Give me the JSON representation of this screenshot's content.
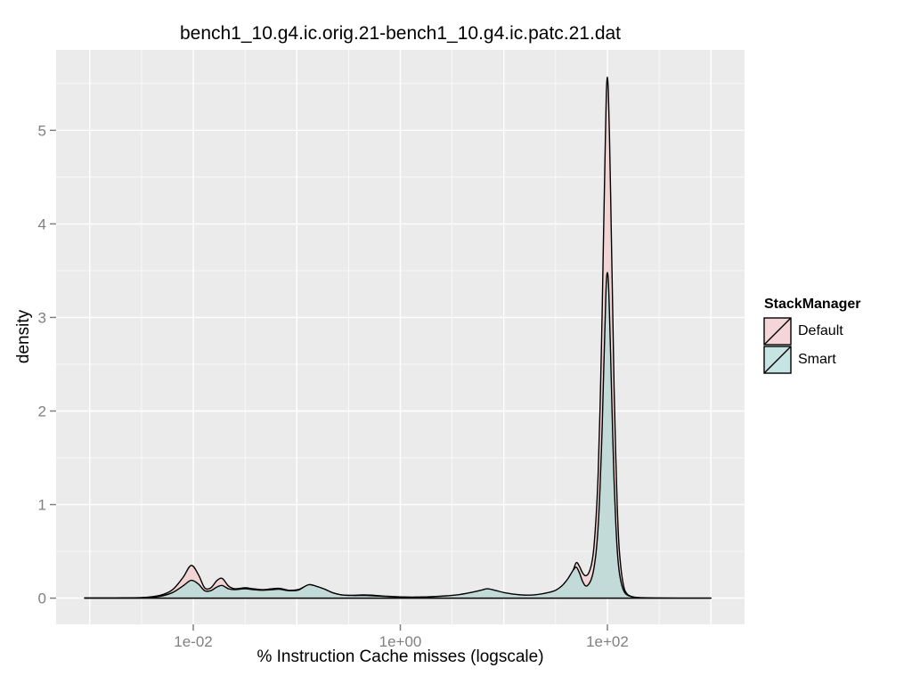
{
  "title": "bench1_10.g4.ic.orig.21-bench1_10.g4.ic.patc.21.dat",
  "chart_data": {
    "type": "area",
    "subtype": "density",
    "title": "bench1_10.g4.ic.orig.21-bench1_10.g4.ic.patc.21.dat",
    "xlabel": "% Instruction Cache misses (logscale)",
    "ylabel": "density",
    "x_scale": "log10",
    "grid": "on",
    "axes": {
      "x": {
        "range": [
          -3.325,
          3.325
        ],
        "ticks": [
          {
            "value": -2,
            "label": "1e-02"
          },
          {
            "value": 0,
            "label": "1e+00"
          },
          {
            "value": 2,
            "label": "1e+02"
          }
        ],
        "major": [
          -3,
          -2,
          -1,
          0,
          1,
          2,
          3
        ],
        "minor": [
          -2.5,
          -1.5,
          -0.5,
          0.5,
          1.5,
          2.5
        ]
      },
      "y": {
        "range": [
          -0.28,
          5.86
        ],
        "ticks": [
          {
            "value": 0,
            "label": "0"
          },
          {
            "value": 1,
            "label": "1"
          },
          {
            "value": 2,
            "label": "2"
          },
          {
            "value": 3,
            "label": "3"
          },
          {
            "value": 4,
            "label": "4"
          },
          {
            "value": 5,
            "label": "5"
          }
        ],
        "major": [
          0,
          1,
          2,
          3,
          4,
          5
        ],
        "minor": [
          0.5,
          1.5,
          2.5,
          3.5,
          4.5,
          5.5
        ]
      }
    },
    "legend": {
      "title": "StackManager",
      "position": "right",
      "items": [
        {
          "label": "Default",
          "fill": "#F4D6D8"
        },
        {
          "label": "Smart",
          "fill": "#C6E4E3"
        }
      ]
    },
    "style": {
      "panel_bg": "#EBEBEB",
      "grid": "#FFFFFF",
      "tick": "#7F7F7F",
      "tick_text": "#808080",
      "curve_stroke": "#000000",
      "key_stroke": "#000000"
    },
    "series": [
      {
        "name": "Default",
        "fill": "#F2D4D5",
        "points": [
          [
            -3.05,
            0.001
          ],
          [
            -2.75,
            0.002
          ],
          [
            -2.5,
            0.006
          ],
          [
            -2.32,
            0.03
          ],
          [
            -2.2,
            0.09
          ],
          [
            -2.1,
            0.22
          ],
          [
            -2.02,
            0.35
          ],
          [
            -1.95,
            0.25
          ],
          [
            -1.89,
            0.11
          ],
          [
            -1.83,
            0.11
          ],
          [
            -1.77,
            0.19
          ],
          [
            -1.72,
            0.21
          ],
          [
            -1.66,
            0.13
          ],
          [
            -1.6,
            0.1
          ],
          [
            -1.5,
            0.11
          ],
          [
            -1.42,
            0.1
          ],
          [
            -1.33,
            0.09
          ],
          [
            -1.24,
            0.1
          ],
          [
            -1.17,
            0.105
          ],
          [
            -1.08,
            0.085
          ],
          [
            -0.99,
            0.09
          ],
          [
            -0.93,
            0.12
          ],
          [
            -0.88,
            0.14
          ],
          [
            -0.82,
            0.125
          ],
          [
            -0.74,
            0.1
          ],
          [
            -0.66,
            0.06
          ],
          [
            -0.57,
            0.035
          ],
          [
            -0.46,
            0.03
          ],
          [
            -0.36,
            0.035
          ],
          [
            -0.25,
            0.03
          ],
          [
            -0.13,
            0.02
          ],
          [
            0,
            0.013
          ],
          [
            0.15,
            0.01
          ],
          [
            0.3,
            0.014
          ],
          [
            0.45,
            0.022
          ],
          [
            0.58,
            0.035
          ],
          [
            0.7,
            0.06
          ],
          [
            0.78,
            0.075
          ],
          [
            0.84,
            0.085
          ],
          [
            0.91,
            0.075
          ],
          [
            1,
            0.055
          ],
          [
            1.1,
            0.04
          ],
          [
            1.22,
            0.03
          ],
          [
            1.33,
            0.035
          ],
          [
            1.43,
            0.05
          ],
          [
            1.5,
            0.07
          ],
          [
            1.56,
            0.11
          ],
          [
            1.62,
            0.18
          ],
          [
            1.67,
            0.3
          ],
          [
            1.7,
            0.38
          ],
          [
            1.73,
            0.34
          ],
          [
            1.76,
            0.27
          ],
          [
            1.79,
            0.24
          ],
          [
            1.82,
            0.27
          ],
          [
            1.85,
            0.38
          ],
          [
            1.87,
            0.55
          ],
          [
            1.89,
            0.85
          ],
          [
            1.91,
            1.3
          ],
          [
            1.93,
            2.05
          ],
          [
            1.95,
            3.1
          ],
          [
            1.965,
            4
          ],
          [
            1.98,
            4.9
          ],
          [
            1.99,
            5.4
          ],
          [
            2,
            5.57
          ],
          [
            2.01,
            5.4
          ],
          [
            2.02,
            4.95
          ],
          [
            2.035,
            4.1
          ],
          [
            2.05,
            3.15
          ],
          [
            2.065,
            2.25
          ],
          [
            2.08,
            1.55
          ],
          [
            2.095,
            1
          ],
          [
            2.11,
            0.6
          ],
          [
            2.13,
            0.33
          ],
          [
            2.15,
            0.17
          ],
          [
            2.17,
            0.08
          ],
          [
            2.2,
            0.035
          ],
          [
            2.25,
            0.012
          ],
          [
            2.32,
            0.004
          ],
          [
            2.45,
            0.001
          ],
          [
            2.7,
            0
          ],
          [
            3,
            0
          ]
        ]
      },
      {
        "name": "Smart",
        "fill": "#C3DBD8",
        "points": [
          [
            -3.05,
            0.001
          ],
          [
            -2.75,
            0.002
          ],
          [
            -2.5,
            0.004
          ],
          [
            -2.32,
            0.02
          ],
          [
            -2.2,
            0.06
          ],
          [
            -2.1,
            0.13
          ],
          [
            -2.02,
            0.19
          ],
          [
            -1.95,
            0.15
          ],
          [
            -1.89,
            0.08
          ],
          [
            -1.83,
            0.08
          ],
          [
            -1.77,
            0.12
          ],
          [
            -1.72,
            0.135
          ],
          [
            -1.66,
            0.1
          ],
          [
            -1.6,
            0.09
          ],
          [
            -1.5,
            0.1
          ],
          [
            -1.42,
            0.09
          ],
          [
            -1.33,
            0.085
          ],
          [
            -1.24,
            0.09
          ],
          [
            -1.17,
            0.095
          ],
          [
            -1.08,
            0.08
          ],
          [
            -0.99,
            0.085
          ],
          [
            -0.93,
            0.12
          ],
          [
            -0.88,
            0.145
          ],
          [
            -0.82,
            0.13
          ],
          [
            -0.74,
            0.1
          ],
          [
            -0.66,
            0.06
          ],
          [
            -0.57,
            0.035
          ],
          [
            -0.46,
            0.028
          ],
          [
            -0.36,
            0.03
          ],
          [
            -0.25,
            0.025
          ],
          [
            -0.13,
            0.018
          ],
          [
            0,
            0.012
          ],
          [
            0.15,
            0.01
          ],
          [
            0.3,
            0.015
          ],
          [
            0.45,
            0.025
          ],
          [
            0.58,
            0.04
          ],
          [
            0.7,
            0.065
          ],
          [
            0.78,
            0.085
          ],
          [
            0.84,
            0.1
          ],
          [
            0.91,
            0.085
          ],
          [
            1,
            0.06
          ],
          [
            1.1,
            0.042
          ],
          [
            1.22,
            0.032
          ],
          [
            1.33,
            0.04
          ],
          [
            1.43,
            0.06
          ],
          [
            1.5,
            0.085
          ],
          [
            1.56,
            0.13
          ],
          [
            1.62,
            0.21
          ],
          [
            1.67,
            0.3
          ],
          [
            1.7,
            0.33
          ],
          [
            1.73,
            0.27
          ],
          [
            1.76,
            0.18
          ],
          [
            1.79,
            0.13
          ],
          [
            1.82,
            0.15
          ],
          [
            1.85,
            0.22
          ],
          [
            1.87,
            0.32
          ],
          [
            1.89,
            0.48
          ],
          [
            1.91,
            0.75
          ],
          [
            1.93,
            1.2
          ],
          [
            1.95,
            1.85
          ],
          [
            1.965,
            2.45
          ],
          [
            1.98,
            3.05
          ],
          [
            1.99,
            3.38
          ],
          [
            2,
            3.48
          ],
          [
            2.01,
            3.38
          ],
          [
            2.02,
            3.05
          ],
          [
            2.035,
            2.45
          ],
          [
            2.05,
            1.8
          ],
          [
            2.065,
            1.25
          ],
          [
            2.08,
            0.82
          ],
          [
            2.095,
            0.52
          ],
          [
            2.11,
            0.32
          ],
          [
            2.13,
            0.18
          ],
          [
            2.15,
            0.1
          ],
          [
            2.17,
            0.055
          ],
          [
            2.2,
            0.028
          ],
          [
            2.25,
            0.012
          ],
          [
            2.32,
            0.005
          ],
          [
            2.45,
            0.002
          ],
          [
            2.7,
            0
          ],
          [
            3,
            0
          ]
        ]
      }
    ]
  }
}
